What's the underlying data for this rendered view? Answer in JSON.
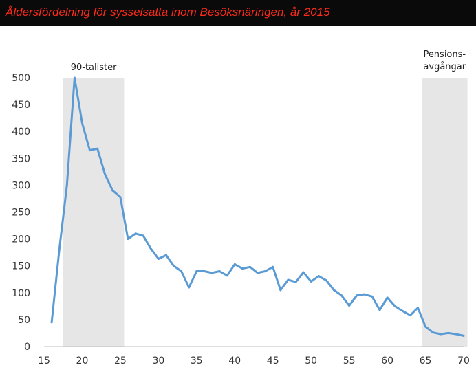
{
  "title": "Åldersfördelning för sysselsatta inom Besöksnäringen, år 2015",
  "colors": {
    "title_background": "#0a0a0a",
    "title_text": "#ff2a1a",
    "line": "#5b9bd5",
    "band": "#e6e6e6",
    "axis": "#bfbfbf"
  },
  "chart_data": {
    "type": "line",
    "title": "Åldersfördelning för sysselsatta inom Besöksnäringen, år 2015",
    "xlabel": "",
    "ylabel": "",
    "xlim": [
      15,
      70
    ],
    "ylim": [
      0,
      500
    ],
    "xticks": [
      15,
      20,
      25,
      30,
      35,
      40,
      45,
      50,
      55,
      60,
      65,
      70
    ],
    "yticks": [
      0,
      50,
      100,
      150,
      200,
      250,
      300,
      350,
      400,
      450,
      500
    ],
    "grid": false,
    "series": [
      {
        "x": [
          16,
          17,
          18,
          19,
          20,
          21,
          22,
          23,
          24,
          25,
          26,
          27,
          28,
          29,
          30,
          31,
          32,
          33,
          34,
          35,
          36,
          37,
          38,
          39,
          40,
          41,
          42,
          43,
          44,
          45,
          46,
          47,
          48,
          49,
          50,
          51,
          52,
          53,
          54,
          55,
          56,
          57,
          58,
          59,
          60,
          61,
          62,
          63,
          64,
          65,
          66,
          67,
          68,
          69,
          70
        ],
        "values": [
          45,
          180,
          300,
          500,
          415,
          365,
          368,
          320,
          290,
          278,
          200,
          210,
          206,
          182,
          163,
          170,
          150,
          140,
          110,
          140,
          140,
          137,
          140,
          132,
          153,
          145,
          148,
          137,
          140,
          148,
          105,
          124,
          120,
          138,
          121,
          131,
          123,
          105,
          95,
          76,
          95,
          97,
          93,
          68,
          91,
          75,
          66,
          58,
          72,
          37,
          26,
          23,
          25,
          23,
          20
        ]
      }
    ],
    "shaded_bands": [
      {
        "x_start": 17.5,
        "x_end": 25.5,
        "label": "90-talister"
      },
      {
        "x_start": 64.5,
        "x_end": 70.5,
        "label_lines": [
          "Pensions-",
          "avgångar"
        ]
      }
    ]
  }
}
